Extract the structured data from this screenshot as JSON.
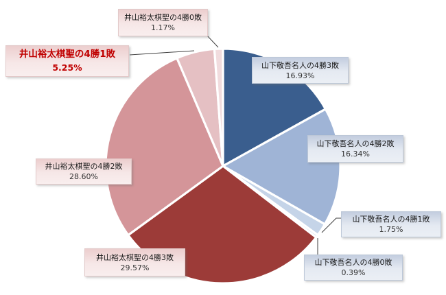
{
  "chart_data": {
    "type": "pie",
    "title": "",
    "start_angle_deg": 0,
    "direction": "clockwise",
    "legend": "none",
    "slice_border_color": "#FFFFFF",
    "leader_line_color": "#3F3F3F",
    "slices": [
      {
        "label": "山下敬吾名人の4勝3敗",
        "value": 16.93,
        "percent": "16.93%",
        "color": "#3A5E8E"
      },
      {
        "label": "山下敬吾名人の4勝2敗",
        "value": 16.34,
        "percent": "16.34%",
        "color": "#9FB4D6"
      },
      {
        "label": "山下敬吾名人の4勝1敗",
        "value": 1.75,
        "percent": "1.75%",
        "color": "#C5D4E8"
      },
      {
        "label": "山下敬吾名人の4勝0敗",
        "value": 0.39,
        "percent": "0.39%",
        "color": "#DDE5F1"
      },
      {
        "label": "井山裕太棋聖の4勝3敗",
        "value": 29.57,
        "percent": "29.57%",
        "color": "#9C3B38"
      },
      {
        "label": "井山裕太棋聖の4勝2敗",
        "value": 28.6,
        "percent": "28.60%",
        "color": "#D49599"
      },
      {
        "label": "井山裕太棋聖の4勝1敗",
        "value": 5.25,
        "percent": "5.25%",
        "color": "#E5C0C3"
      },
      {
        "label": "井山裕太棋聖の4勝0敗",
        "value": 1.17,
        "percent": "1.17%",
        "color": "#F1DCDE"
      }
    ],
    "highlight": {
      "slice_label": "井山裕太棋聖の4勝1敗",
      "text_color": "#C00000",
      "bold": true
    }
  }
}
